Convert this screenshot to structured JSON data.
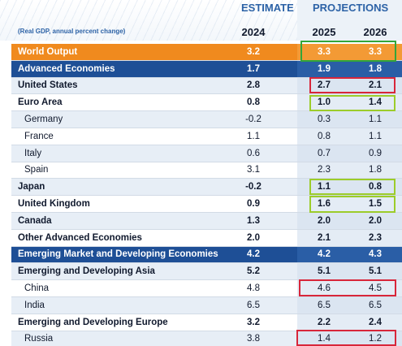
{
  "header": {
    "estimate": "ESTIMATE",
    "projections": "PROJECTIONS",
    "note": "(Real GDP, annual percent change)",
    "years": [
      "2024",
      "2025",
      "2026"
    ]
  },
  "rows": [
    {
      "name": "World Output",
      "v2024": "3.2",
      "v2025": "3.3",
      "v2026": "3.3"
    },
    {
      "name": "Advanced Economies",
      "v2024": "1.7",
      "v2025": "1.9",
      "v2026": "1.8"
    },
    {
      "name": "United States",
      "v2024": "2.8",
      "v2025": "2.7",
      "v2026": "2.1"
    },
    {
      "name": "Euro Area",
      "v2024": "0.8",
      "v2025": "1.0",
      "v2026": "1.4"
    },
    {
      "name": "Germany",
      "v2024": "-0.2",
      "v2025": "0.3",
      "v2026": "1.1"
    },
    {
      "name": "France",
      "v2024": "1.1",
      "v2025": "0.8",
      "v2026": "1.1"
    },
    {
      "name": "Italy",
      "v2024": "0.6",
      "v2025": "0.7",
      "v2026": "0.9"
    },
    {
      "name": "Spain",
      "v2024": "3.1",
      "v2025": "2.3",
      "v2026": "1.8"
    },
    {
      "name": "Japan",
      "v2024": "-0.2",
      "v2025": "1.1",
      "v2026": "0.8"
    },
    {
      "name": "United Kingdom",
      "v2024": "0.9",
      "v2025": "1.6",
      "v2026": "1.5"
    },
    {
      "name": "Canada",
      "v2024": "1.3",
      "v2025": "2.0",
      "v2026": "2.0"
    },
    {
      "name": "Other Advanced Economies",
      "v2024": "2.0",
      "v2025": "2.1",
      "v2026": "2.3"
    },
    {
      "name": "Emerging Market and Developing Economies",
      "v2024": "4.2",
      "v2025": "4.2",
      "v2026": "4.3"
    },
    {
      "name": "Emerging and Developing Asia",
      "v2024": "5.2",
      "v2025": "5.1",
      "v2026": "5.1"
    },
    {
      "name": "China",
      "v2024": "4.8",
      "v2025": "4.6",
      "v2026": "4.5"
    },
    {
      "name": "India",
      "v2024": "6.5",
      "v2025": "6.5",
      "v2026": "6.5"
    },
    {
      "name": "Emerging and Developing Europe",
      "v2024": "3.2",
      "v2025": "2.2",
      "v2026": "2.4"
    },
    {
      "name": "Russia",
      "v2024": "3.8",
      "v2025": "1.4",
      "v2026": "1.2"
    }
  ],
  "highlight_colors": {
    "green": "#33a63a",
    "red": "#d8263a",
    "lime": "#9ccc2a"
  },
  "colors": {
    "world_row": "#f08a1e",
    "major_row": "#1e4f96"
  }
}
